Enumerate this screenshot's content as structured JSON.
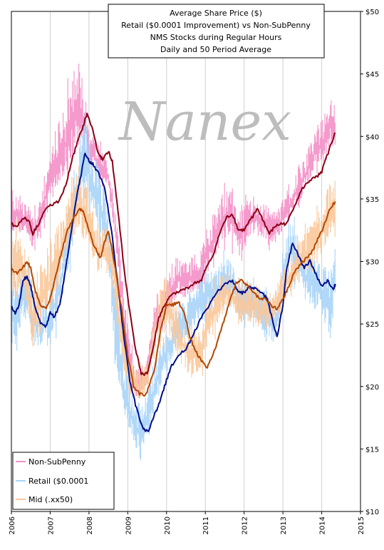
{
  "chart_data": {
    "type": "line",
    "title_lines": [
      "Average Share Price ($)",
      "Retail ($0.0001 Improvement) vs Non-SubPenny",
      "NMS Stocks during Regular Hours",
      "Daily and 50 Period Average"
    ],
    "watermark": "Nanex",
    "y_axis": {
      "side": "right",
      "min": 10,
      "max": 50,
      "ticks": [
        10,
        15,
        20,
        25,
        30,
        35,
        40,
        45,
        50
      ],
      "tick_labels": [
        "$10",
        "$15",
        "$20",
        "$25",
        "$30",
        "$35",
        "$40",
        "$45",
        "$50"
      ]
    },
    "x_axis": {
      "min": 2006,
      "max": 2015,
      "ticks": [
        2006,
        2007,
        2008,
        2009,
        2010,
        2011,
        2012,
        2013,
        2014,
        2015
      ],
      "tick_labels": [
        "2006",
        "2007",
        "2008",
        "2009",
        "2010",
        "2011",
        "2012",
        "2013",
        "2014",
        "2015"
      ]
    },
    "grid": "vertical",
    "legend": {
      "placement": "bottom-left",
      "entries": [
        "Non-SubPenny",
        "Retail ($0.0001",
        "Mid (.xx50)"
      ]
    },
    "series": [
      {
        "name": "Non-SubPenny",
        "daily_color": "#f48fc6",
        "avg_color": "#8b0016",
        "x": [
          2006.0,
          2006.15,
          2006.3,
          2006.45,
          2006.55,
          2006.75,
          2007.0,
          2007.2,
          2007.4,
          2007.6,
          2007.75,
          2007.9,
          2008.0,
          2008.2,
          2008.35,
          2008.5,
          2008.6,
          2008.75,
          2008.9,
          2009.05,
          2009.2,
          2009.35,
          2009.5,
          2009.65,
          2009.8,
          2009.9,
          2010.0,
          2010.15,
          2010.3,
          2010.5,
          2010.7,
          2010.9,
          2011.0,
          2011.2,
          2011.4,
          2011.55,
          2011.7,
          2011.85,
          2012.0,
          2012.2,
          2012.4,
          2012.6,
          2012.75,
          2012.9,
          2013.0,
          2013.2,
          2013.4,
          2013.6,
          2013.8,
          2014.0,
          2014.2,
          2014.35
        ],
        "daily_max": [
          36.0,
          35.5,
          35.0,
          34.5,
          33.5,
          35.0,
          38.5,
          41.0,
          42.5,
          45.5,
          46.0,
          44.0,
          41.0,
          39.5,
          39.0,
          38.0,
          36.0,
          32.5,
          27.5,
          23.5,
          21.5,
          21.5,
          22.5,
          26.5,
          27.0,
          27.5,
          29.0,
          29.5,
          30.5,
          30.0,
          30.5,
          31.0,
          32.5,
          34.0,
          35.0,
          36.0,
          35.5,
          34.5,
          34.5,
          35.5,
          35.0,
          34.5,
          34.0,
          34.5,
          35.5,
          36.0,
          37.5,
          38.5,
          40.5,
          41.5,
          43.0,
          43.0
        ],
        "daily_min": [
          31.0,
          32.0,
          31.5,
          31.5,
          30.5,
          32.0,
          34.0,
          35.0,
          36.0,
          37.0,
          38.5,
          37.5,
          37.0,
          36.5,
          36.0,
          35.5,
          33.0,
          28.5,
          23.5,
          19.5,
          18.5,
          18.5,
          20.0,
          23.0,
          24.0,
          24.0,
          25.0,
          26.0,
          26.5,
          26.5,
          27.0,
          27.0,
          28.0,
          29.0,
          30.5,
          31.0,
          30.5,
          29.5,
          30.5,
          31.5,
          31.5,
          31.0,
          31.0,
          31.0,
          32.0,
          33.0,
          34.0,
          35.5,
          36.5,
          37.0,
          38.5,
          38.5
        ],
        "avg_x": [
          2006.0,
          2006.15,
          2006.3,
          2006.45,
          2006.55,
          2006.7,
          2006.85,
          2007.0,
          2007.2,
          2007.4,
          2007.55,
          2007.7,
          2007.85,
          2007.95,
          2008.1,
          2008.25,
          2008.35,
          2008.5,
          2008.6,
          2008.75,
          2008.9,
          2009.05,
          2009.2,
          2009.35,
          2009.5,
          2009.65,
          2009.8,
          2009.95,
          2010.1,
          2010.3,
          2010.5,
          2010.7,
          2010.9,
          2011.0,
          2011.2,
          2011.4,
          2011.55,
          2011.7,
          2011.85,
          2012.0,
          2012.2,
          2012.35,
          2012.5,
          2012.65,
          2012.8,
          2012.95,
          2013.1,
          2013.3,
          2013.5,
          2013.7,
          2013.85,
          2014.0,
          2014.2,
          2014.35
        ],
        "avg_y": [
          33.0,
          32.8,
          33.5,
          33.3,
          32.2,
          33.0,
          34.0,
          34.5,
          34.8,
          36.0,
          38.0,
          39.5,
          40.8,
          41.8,
          40.5,
          38.5,
          38.2,
          38.8,
          38.0,
          34.0,
          29.5,
          26.0,
          23.0,
          21.0,
          21.0,
          23.0,
          25.5,
          26.5,
          27.2,
          27.6,
          27.8,
          28.2,
          28.5,
          29.3,
          30.5,
          32.5,
          33.5,
          33.8,
          32.5,
          32.5,
          33.5,
          34.2,
          33.2,
          32.2,
          32.8,
          33.0,
          33.0,
          34.5,
          35.8,
          36.5,
          36.7,
          37.2,
          39.0,
          40.3
        ]
      },
      {
        "name": "Retail ($0.0001",
        "daily_color": "#a8d4f8",
        "avg_color": "#000d8a",
        "x": [
          2006.0,
          2006.15,
          2006.3,
          2006.45,
          2006.55,
          2006.75,
          2007.0,
          2007.2,
          2007.4,
          2007.6,
          2007.75,
          2007.9,
          2008.0,
          2008.2,
          2008.35,
          2008.5,
          2008.6,
          2008.75,
          2008.9,
          2009.05,
          2009.2,
          2009.35,
          2009.5,
          2009.65,
          2009.8,
          2009.9,
          2010.0,
          2010.15,
          2010.3,
          2010.5,
          2010.7,
          2010.9,
          2011.0,
          2011.2,
          2011.4,
          2011.55,
          2011.7,
          2011.85,
          2012.0,
          2012.2,
          2012.4,
          2012.6,
          2012.75,
          2012.9,
          2013.0,
          2013.2,
          2013.4,
          2013.6,
          2013.8,
          2014.0,
          2014.2,
          2014.35
        ],
        "daily_max": [
          29.5,
          28.5,
          30.5,
          30.0,
          28.0,
          27.0,
          27.5,
          30.0,
          33.5,
          37.0,
          40.0,
          41.5,
          40.0,
          38.0,
          36.5,
          34.0,
          30.5,
          26.0,
          22.5,
          20.0,
          19.0,
          18.5,
          19.5,
          21.0,
          23.0,
          24.0,
          24.5,
          25.5,
          26.5,
          27.0,
          28.0,
          29.0,
          29.0,
          29.5,
          30.0,
          30.5,
          30.0,
          29.0,
          28.5,
          28.5,
          28.0,
          27.5,
          26.5,
          28.0,
          31.0,
          33.5,
          32.0,
          31.0,
          30.5,
          30.0,
          30.5,
          32.0
        ],
        "daily_min": [
          22.0,
          22.5,
          24.5,
          24.5,
          22.0,
          22.5,
          22.5,
          24.5,
          27.5,
          30.5,
          33.5,
          34.5,
          34.0,
          32.5,
          30.5,
          28.5,
          24.0,
          19.5,
          17.0,
          15.5,
          14.5,
          13.0,
          15.0,
          17.0,
          19.0,
          20.0,
          20.5,
          21.5,
          22.0,
          23.0,
          24.0,
          24.5,
          25.0,
          25.5,
          26.0,
          26.5,
          26.0,
          25.0,
          24.5,
          24.5,
          24.0,
          23.5,
          23.0,
          24.5,
          27.5,
          28.5,
          27.0,
          26.0,
          25.5,
          25.0,
          22.0,
          25.0
        ],
        "avg_x": [
          2006.0,
          2006.1,
          2006.2,
          2006.3,
          2006.4,
          2006.5,
          2006.6,
          2006.75,
          2006.9,
          2007.0,
          2007.1,
          2007.25,
          2007.4,
          2007.55,
          2007.7,
          2007.8,
          2007.9,
          2008.0,
          2008.1,
          2008.25,
          2008.4,
          2008.5,
          2008.6,
          2008.75,
          2008.9,
          2009.05,
          2009.2,
          2009.35,
          2009.45,
          2009.55,
          2009.7,
          2009.8,
          2009.95,
          2010.1,
          2010.3,
          2010.5,
          2010.7,
          2010.9,
          2011.1,
          2011.3,
          2011.5,
          2011.7,
          2011.85,
          2012.0,
          2012.15,
          2012.3,
          2012.45,
          2012.6,
          2012.75,
          2012.85,
          2013.0,
          2013.1,
          2013.25,
          2013.4,
          2013.55,
          2013.7,
          2013.85,
          2014.0,
          2014.15,
          2014.3,
          2014.35
        ],
        "avg_y": [
          26.5,
          25.8,
          26.5,
          28.5,
          28.8,
          28.0,
          26.5,
          25.0,
          24.8,
          26.0,
          25.5,
          26.5,
          29.5,
          32.5,
          35.5,
          37.0,
          38.7,
          38.0,
          37.8,
          37.0,
          36.0,
          34.0,
          32.0,
          28.0,
          24.0,
          20.5,
          18.5,
          17.0,
          16.4,
          16.5,
          17.8,
          18.5,
          20.0,
          21.5,
          22.5,
          23.0,
          24.2,
          25.5,
          26.5,
          27.5,
          28.2,
          28.5,
          27.5,
          27.5,
          28.0,
          27.8,
          27.5,
          27.0,
          25.0,
          24.0,
          26.5,
          29.5,
          31.5,
          30.5,
          29.5,
          30.0,
          29.0,
          28.0,
          28.5,
          27.8,
          28.2
        ]
      },
      {
        "name": "Mid (.xx50)",
        "daily_color": "#fbc89a",
        "avg_color": "#b34700",
        "x": [
          2006.0,
          2006.15,
          2006.3,
          2006.45,
          2006.55,
          2006.75,
          2007.0,
          2007.2,
          2007.4,
          2007.6,
          2007.75,
          2007.9,
          2008.0,
          2008.2,
          2008.35,
          2008.5,
          2008.6,
          2008.75,
          2008.9,
          2009.05,
          2009.2,
          2009.35,
          2009.5,
          2009.65,
          2009.8,
          2009.9,
          2010.0,
          2010.15,
          2010.3,
          2010.5,
          2010.7,
          2010.9,
          2011.0,
          2011.2,
          2011.4,
          2011.55,
          2011.7,
          2011.85,
          2012.0,
          2012.2,
          2012.4,
          2012.6,
          2012.75,
          2012.9,
          2013.0,
          2013.2,
          2013.4,
          2013.6,
          2013.8,
          2014.0,
          2014.2,
          2014.35
        ],
        "daily_max": [
          32.5,
          33.0,
          32.0,
          30.5,
          28.5,
          30.0,
          31.5,
          33.0,
          35.0,
          37.0,
          38.0,
          37.0,
          35.0,
          33.5,
          33.0,
          33.0,
          32.5,
          29.0,
          25.0,
          22.5,
          21.5,
          21.5,
          22.0,
          25.0,
          28.0,
          28.5,
          28.5,
          28.0,
          26.5,
          25.0,
          24.5,
          25.0,
          26.5,
          28.0,
          29.0,
          29.5,
          29.0,
          28.5,
          28.5,
          28.5,
          28.0,
          27.5,
          27.5,
          28.5,
          29.5,
          30.5,
          31.5,
          32.5,
          33.5,
          34.5,
          36.5,
          37.0
        ],
        "daily_min": [
          26.0,
          26.5,
          26.0,
          24.5,
          22.0,
          23.0,
          25.0,
          27.0,
          29.5,
          30.5,
          31.0,
          30.5,
          30.0,
          28.5,
          28.0,
          28.0,
          27.0,
          23.5,
          20.5,
          18.5,
          18.5,
          18.5,
          19.0,
          21.0,
          23.0,
          23.5,
          23.5,
          23.0,
          21.5,
          20.5,
          20.0,
          20.5,
          22.0,
          23.5,
          25.0,
          25.5,
          25.0,
          24.5,
          24.5,
          24.5,
          24.0,
          24.0,
          24.5,
          25.5,
          26.0,
          27.0,
          28.0,
          28.5,
          29.5,
          30.0,
          31.0,
          32.0
        ],
        "avg_x": [
          2006.0,
          2006.15,
          2006.3,
          2006.4,
          2006.5,
          2006.6,
          2006.75,
          2006.9,
          2007.0,
          2007.15,
          2007.3,
          2007.45,
          2007.6,
          2007.75,
          2007.85,
          2008.0,
          2008.1,
          2008.2,
          2008.3,
          2008.4,
          2008.5,
          2008.6,
          2008.7,
          2008.85,
          2009.0,
          2009.15,
          2009.3,
          2009.45,
          2009.55,
          2009.7,
          2009.85,
          2010.0,
          2010.15,
          2010.3,
          2010.45,
          2010.6,
          2010.75,
          2010.9,
          2011.05,
          2011.2,
          2011.35,
          2011.5,
          2011.65,
          2011.8,
          2011.95,
          2012.1,
          2012.25,
          2012.4,
          2012.55,
          2012.7,
          2012.85,
          2013.0,
          2013.15,
          2013.3,
          2013.45,
          2013.6,
          2013.75,
          2013.9,
          2014.05,
          2014.2,
          2014.35
        ],
        "avg_y": [
          29.5,
          29.0,
          29.5,
          30.0,
          29.5,
          27.8,
          26.5,
          26.2,
          27.0,
          29.0,
          30.8,
          32.5,
          33.5,
          34.2,
          34.0,
          32.5,
          31.5,
          30.8,
          30.3,
          31.5,
          32.5,
          30.8,
          29.0,
          26.0,
          22.5,
          20.0,
          19.4,
          19.3,
          20.0,
          21.5,
          24.5,
          26.5,
          26.5,
          26.8,
          26.0,
          24.0,
          22.8,
          22.0,
          21.5,
          22.5,
          24.0,
          25.5,
          27.0,
          28.3,
          28.5,
          28.0,
          27.5,
          27.0,
          27.0,
          26.5,
          26.2,
          27.0,
          28.0,
          29.2,
          29.8,
          30.2,
          30.8,
          31.8,
          32.8,
          34.2,
          34.8
        ]
      }
    ]
  }
}
